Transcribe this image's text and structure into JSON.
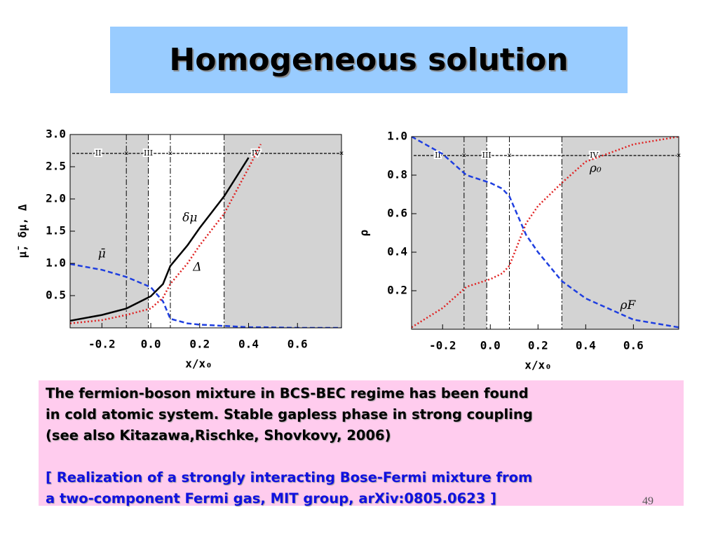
{
  "title": "Homogeneous solution",
  "note": {
    "lines": [
      "The fermion-boson mixture in BCS-BEC regime has been found",
      "in cold atomic system. Stable gapless phase in strong coupling",
      "(see also Kitazawa,Rischke, Shovkovy, 2006)"
    ],
    "reference": [
      "[ Realization of a strongly interacting Bose-Fermi mixture from",
      "a two-component Fermi gas, MIT group, arXiv:0805.0623 ]"
    ]
  },
  "page_number": "49",
  "chart_data": [
    {
      "type": "line",
      "xlabel": "x/x₀",
      "ylabel": "μ̄, δμ, Δ",
      "x": [
        -0.33,
        -0.2,
        -0.1,
        0,
        0.05,
        0.08,
        0.15,
        0.2,
        0.3,
        0.4,
        0.45,
        0.6,
        0.78
      ],
      "series": [
        {
          "name": "μ̄",
          "color": "#1f3fe0",
          "style": "dashed",
          "values": [
            0.99,
            0.9,
            0.79,
            0.63,
            0.41,
            0.14,
            0.07,
            0.05,
            0.03,
            0.01,
            0.01,
            0.0,
            0.0
          ]
        },
        {
          "name": "δμ",
          "color": "#000000",
          "style": "solid",
          "values": [
            0.11,
            0.2,
            0.3,
            0.49,
            0.68,
            0.96,
            1.28,
            1.55,
            2.04,
            2.64,
            null,
            null,
            null
          ]
        },
        {
          "name": "Δ",
          "color": "#e02020",
          "style": "dotted",
          "values": [
            0.07,
            0.12,
            0.2,
            0.3,
            0.47,
            0.68,
            1.0,
            1.28,
            1.77,
            2.48,
            2.85,
            null,
            null
          ]
        }
      ],
      "xlim": [
        -0.33,
        0.78
      ],
      "ylim": [
        0,
        3.0
      ],
      "xticks": [
        -0.2,
        {
          "value": 0,
          "label": "0.0"
        },
        0.2,
        0.4,
        0.6
      ],
      "yticks": [
        0.5,
        {
          "value": 1,
          "label": "1.0"
        },
        1.5,
        {
          "value": 2,
          "label": "2.0"
        },
        2.5,
        {
          "value": 3,
          "label": "3.0"
        }
      ],
      "vlines": [
        -0.1,
        -0.01,
        0.08,
        0.3
      ],
      "shaded": [
        [
          -0.33,
          -0.01
        ],
        [
          0.3,
          0.78
        ]
      ],
      "regions": [
        {
          "label": "II",
          "from": -0.33,
          "to": -0.1
        },
        {
          "label": "III",
          "from": -0.1,
          "to": 0.08
        },
        {
          "label": "IV",
          "from": 0.08,
          "to": 0.78
        }
      ]
    },
    {
      "type": "line",
      "xlabel": "x/x₀",
      "ylabel": "ρ",
      "x": [
        -0.33,
        -0.2,
        -0.1,
        0,
        0.05,
        0.08,
        0.15,
        0.2,
        0.3,
        0.4,
        0.6,
        0.79
      ],
      "series": [
        {
          "name": "ρ₀",
          "color": "#e02020",
          "style": "dotted",
          "values": [
            0.01,
            0.11,
            0.22,
            0.26,
            0.29,
            0.33,
            0.55,
            0.64,
            0.76,
            0.87,
            0.96,
            1.0
          ]
        },
        {
          "name": "ρF",
          "color": "#1f3fe0",
          "style": "dashed",
          "values": [
            1.0,
            0.91,
            0.8,
            0.76,
            0.73,
            0.69,
            0.49,
            0.4,
            0.25,
            0.16,
            0.05,
            0.01
          ]
        }
      ],
      "xlim": [
        -0.33,
        0.79
      ],
      "ylim": [
        0,
        1.0
      ],
      "xticks": [
        -0.2,
        {
          "value": 0,
          "label": "0.0"
        },
        0.2,
        0.4,
        0.6
      ],
      "yticks": [
        0.2,
        0.4,
        0.6,
        0.8,
        {
          "value": 1,
          "label": "1.0"
        }
      ],
      "vlines": [
        -0.11,
        -0.015,
        0.08,
        0.3
      ],
      "shaded": [
        [
          -0.33,
          -0.015
        ],
        [
          0.3,
          0.79
        ]
      ],
      "regions": [
        {
          "label": "II",
          "from": -0.33,
          "to": -0.11
        },
        {
          "label": "III",
          "from": -0.11,
          "to": 0.08
        },
        {
          "label": "IV",
          "from": 0.08,
          "to": 0.79
        }
      ]
    }
  ]
}
